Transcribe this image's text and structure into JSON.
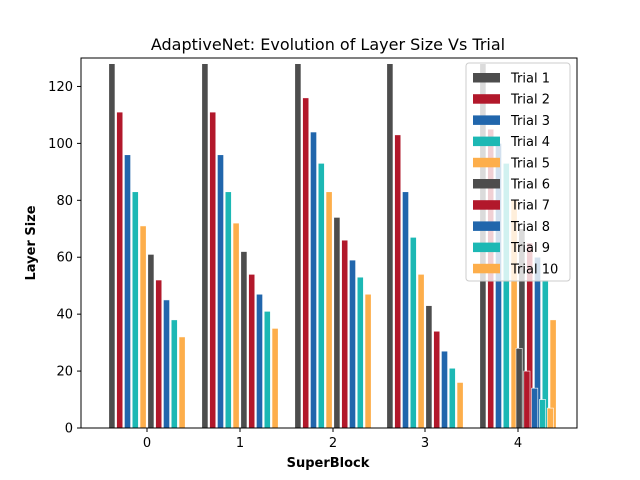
{
  "chart_data": {
    "type": "bar",
    "title": "AdaptiveNet: Evolution of Layer Size Vs Trial",
    "xlabel": "SuperBlock",
    "ylabel": "Layer Size",
    "categories": [
      "0",
      "1",
      "2",
      "3",
      "4"
    ],
    "ylim": [
      0,
      130
    ],
    "yticks": [
      0,
      20,
      40,
      60,
      80,
      100,
      120
    ],
    "grid": false,
    "legend_position": "top-right",
    "series": [
      {
        "name": "Trial 1",
        "color": "#4d4d4d",
        "values": [
          128,
          128,
          128,
          128,
          128
        ]
      },
      {
        "name": "Trial 2",
        "color": "#b2182b",
        "values": [
          111,
          111,
          116,
          103,
          105
        ]
      },
      {
        "name": "Trial 3",
        "color": "#2166ac",
        "values": [
          96,
          96,
          104,
          83,
          100
        ]
      },
      {
        "name": "Trial 4",
        "color": "#1cb8b4",
        "values": [
          83,
          83,
          93,
          67,
          93
        ]
      },
      {
        "name": "Trial 5",
        "color": "#fdae4b",
        "values": [
          71,
          72,
          83,
          54,
          80
        ]
      },
      {
        "name": "Trial 6",
        "color": "#4d4d4d",
        "values": [
          61,
          62,
          74,
          43,
          70
        ]
      },
      {
        "name": "Trial 7",
        "color": "#b2182b",
        "values": [
          52,
          54,
          66,
          34,
          65
        ]
      },
      {
        "name": "Trial 8",
        "color": "#2166ac",
        "values": [
          45,
          47,
          59,
          27,
          60
        ]
      },
      {
        "name": "Trial 9",
        "color": "#1cb8b4",
        "values": [
          38,
          41,
          53,
          21,
          52
        ]
      },
      {
        "name": "Trial 10",
        "color": "#fdae4b",
        "values": [
          32,
          35,
          47,
          16,
          38
        ]
      }
    ],
    "extra_bars_superblock_4": {
      "note_values": [
        28,
        20,
        14,
        10,
        7
      ]
    }
  }
}
